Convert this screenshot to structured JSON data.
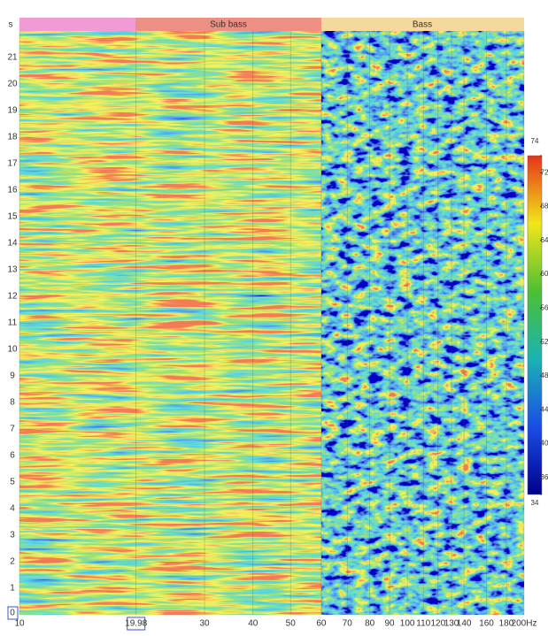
{
  "corner_label": "s",
  "bands": [
    {
      "label": "Sub bass"
    },
    {
      "label": "Bass"
    }
  ],
  "x_axis": {
    "scale": "log",
    "lim": [
      10,
      200
    ],
    "ticks": [
      10,
      19.98,
      30,
      40,
      50,
      60,
      70,
      80,
      90,
      100,
      110,
      120,
      130,
      140,
      160,
      180,
      {
        "value": 200,
        "label": "200Hz"
      }
    ]
  },
  "y_axis": {
    "lim": [
      0,
      22
    ],
    "ticks": [
      0,
      1,
      2,
      3,
      4,
      5,
      6,
      7,
      8,
      9,
      10,
      11,
      12,
      13,
      14,
      15,
      16,
      17,
      18,
      19,
      20,
      21
    ]
  },
  "colorbar": {
    "lim": [
      34,
      74
    ],
    "ticks": [
      74,
      72,
      68,
      64,
      60,
      56,
      52,
      48,
      44,
      40,
      36,
      34
    ]
  }
}
